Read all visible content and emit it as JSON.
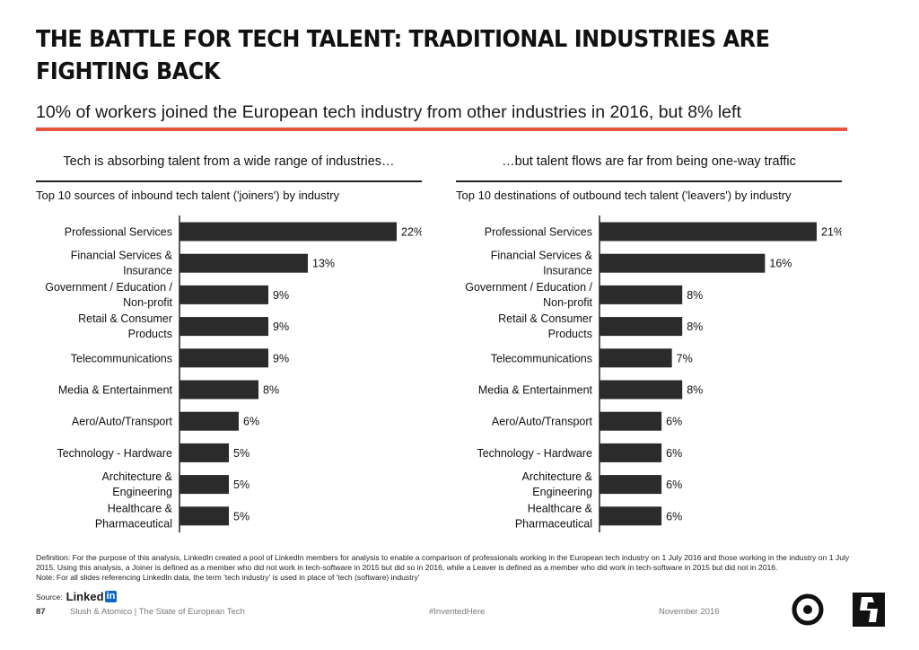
{
  "header": {
    "title": "THE BATTLE FOR TECH TALENT: TRADITIONAL INDUSTRIES ARE FIGHTING BACK",
    "subtitle": "10% of workers joined the European tech industry from other industries in 2016, but 8% left"
  },
  "left_panel": {
    "heading": "Tech is absorbing talent from a wide range of industries…",
    "chart_title": "Top 10 sources of inbound tech talent ('joiners') by industry"
  },
  "right_panel": {
    "heading": "…but talent flows are far from being one-way traffic",
    "chart_title": "Top 10 destinations of outbound tech talent ('leavers') by industry"
  },
  "chart_data": [
    {
      "type": "bar",
      "orientation": "horizontal",
      "title": "Top 10 sources of inbound tech talent ('joiners') by industry",
      "categories": [
        [
          "Professional Services"
        ],
        [
          "Financial Services &",
          "Insurance"
        ],
        [
          "Government / Education /",
          "Non-profit"
        ],
        [
          "Retail & Consumer",
          "Products"
        ],
        [
          "Telecommunications"
        ],
        [
          "Media & Entertainment"
        ],
        [
          "Aero/Auto/Transport"
        ],
        [
          "Technology - Hardware"
        ],
        [
          "Architecture &",
          "Engineering"
        ],
        [
          "Healthcare &",
          "Pharmaceutical"
        ]
      ],
      "values": [
        22,
        13,
        9,
        9,
        9,
        8,
        6,
        5,
        5,
        5
      ],
      "value_labels": [
        "22%",
        "13%",
        "9%",
        "9%",
        "9%",
        "8%",
        "6%",
        "5%",
        "5%",
        "5%"
      ],
      "value_unit": "%",
      "xlim": [
        0,
        22
      ],
      "bar_color": "#2b2b2b",
      "grid": false,
      "legend": "none"
    },
    {
      "type": "bar",
      "orientation": "horizontal",
      "title": "Top 10 destinations of outbound tech talent ('leavers') by industry",
      "categories": [
        [
          "Professional Services"
        ],
        [
          "Financial Services &",
          "Insurance"
        ],
        [
          "Government / Education /",
          "Non-profit"
        ],
        [
          "Retail & Consumer",
          "Products"
        ],
        [
          "Telecommunications"
        ],
        [
          "Media & Entertainment"
        ],
        [
          "Aero/Auto/Transport"
        ],
        [
          "Technology - Hardware"
        ],
        [
          "Architecture &",
          "Engineering"
        ],
        [
          "Healthcare &",
          "Pharmaceutical"
        ]
      ],
      "values": [
        21,
        16,
        8,
        8,
        7,
        8,
        6,
        6,
        6,
        6
      ],
      "value_labels": [
        "21%",
        "16%",
        "8%",
        "8%",
        "7%",
        "8%",
        "6%",
        "6%",
        "6%",
        "6%"
      ],
      "value_unit": "%",
      "xlim": [
        0,
        21
      ],
      "bar_color": "#2b2b2b",
      "grid": false,
      "legend": "none"
    }
  ],
  "footnote": {
    "definition": "Definition: For the purpose of this analysis, LinkedIn created a pool of LinkedIn members for analysis to enable a comparison of professionals working in the European tech industry on 1 July 2016 and those working in the industry on 1 July 2015. Using this analysis, a Joiner is defined as a member who did not work in tech-software in 2015 but did so in 2016, while a Leaver is defined as a member who did work in tech-software in 2015 but did not in 2016.",
    "note": "Note: For all slides referencing LinkedIn data, the term 'tech industry' is used in place of 'tech (software) industry'",
    "source_label": "Source:",
    "source_brand": "Linked",
    "source_brand_in": "in"
  },
  "footer": {
    "page_number": "87",
    "report": "Slush & Atomico | The State of European Tech",
    "hashtag": "#InventedHere",
    "date": "November 2016"
  },
  "colors": {
    "accent_rule": "#e8553a",
    "bar": "#2b2b2b",
    "linkedin_blue": "#0a66c2"
  },
  "icons": [
    "atomico-logo-icon",
    "slush-logo-icon"
  ]
}
